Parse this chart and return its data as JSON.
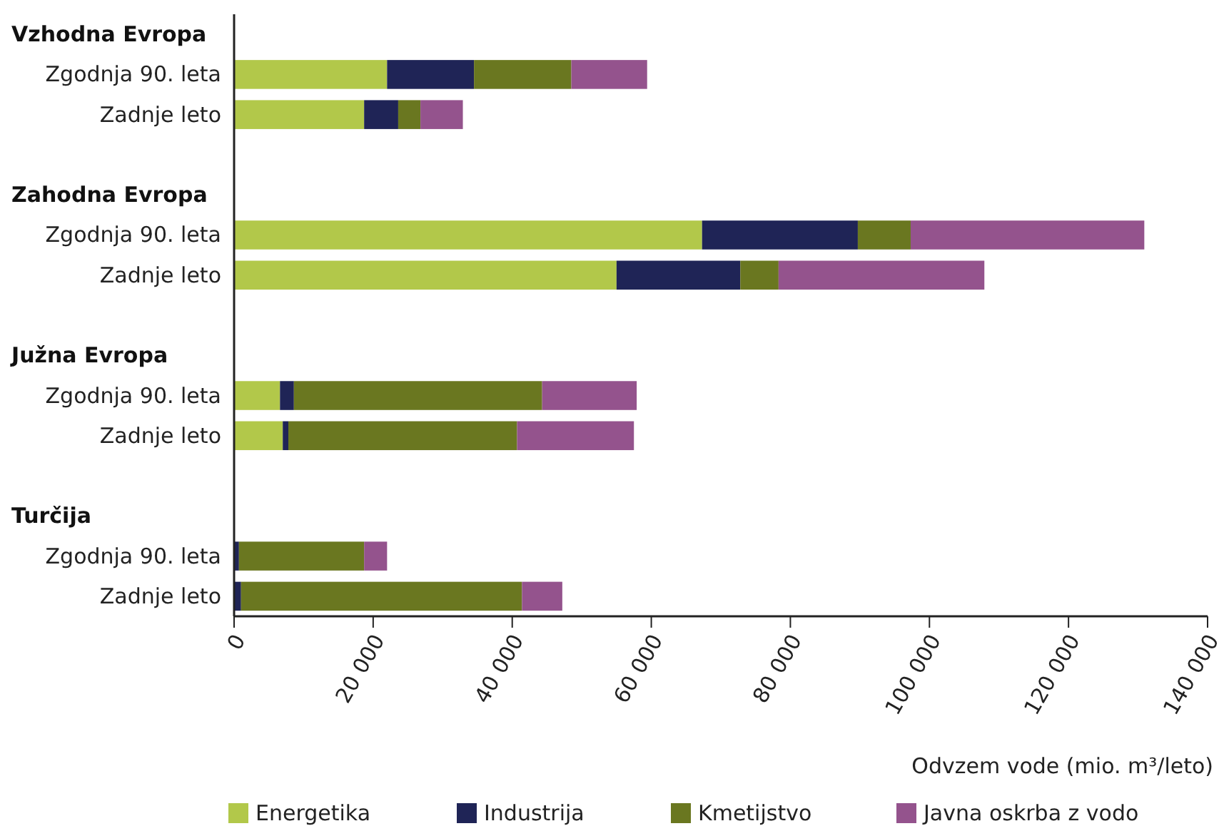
{
  "chart_data": {
    "type": "bar",
    "orientation": "horizontal",
    "stacked": true,
    "xlabel": "Odvzem vode (mio. m³/leto)",
    "categories": [
      null,
      "Zgodnja 90. leta",
      "Zadnje leto",
      null,
      null,
      "Zgodnja 90. leta",
      "Zadnje leto",
      null,
      null,
      "Zgodnja 90. leta",
      "Zadnje leto",
      null,
      null,
      "Zgodnja 90. leta",
      "Zadnje leto"
    ],
    "annotations": [
      "Vzhodna Evropa",
      "Zahodna Evropa",
      "Južna Evropa",
      "Turčija"
    ],
    "series": [
      {
        "name": "Energetika",
        "color": "#b2c84a",
        "values": [
          null,
          22000,
          18700,
          null,
          null,
          67300,
          55000,
          null,
          null,
          6600,
          7000,
          null,
          null,
          0,
          0
        ]
      },
      {
        "name": "Industrija",
        "color": "#1f2456",
        "values": [
          null,
          12500,
          4900,
          null,
          null,
          22400,
          17800,
          null,
          null,
          2000,
          800,
          null,
          null,
          700,
          1000
        ]
      },
      {
        "name": "Kmetijstvo",
        "color": "#6a7720",
        "values": [
          null,
          14000,
          3200,
          null,
          null,
          7600,
          5500,
          null,
          null,
          35700,
          32900,
          null,
          null,
          18000,
          40400
        ]
      },
      {
        "name": "Javna oskrba z vodo",
        "color": "#94538d",
        "values": [
          null,
          10900,
          6100,
          null,
          null,
          33600,
          29600,
          null,
          null,
          13600,
          16800,
          null,
          null,
          3300,
          5800
        ]
      }
    ],
    "xlim": [
      0,
      140000
    ],
    "xticks": [
      0,
      {
        "value": 20000,
        "label": "20 000"
      },
      {
        "value": 40000,
        "label": "40 000"
      },
      {
        "value": 60000,
        "label": "60 000"
      },
      {
        "value": 80000,
        "label": "80 000"
      },
      {
        "value": 100000,
        "label": "100 000"
      },
      {
        "value": 120000,
        "label": "120 000"
      },
      {
        "value": 140000,
        "label": "140 000"
      }
    ],
    "legend": "bottom"
  }
}
